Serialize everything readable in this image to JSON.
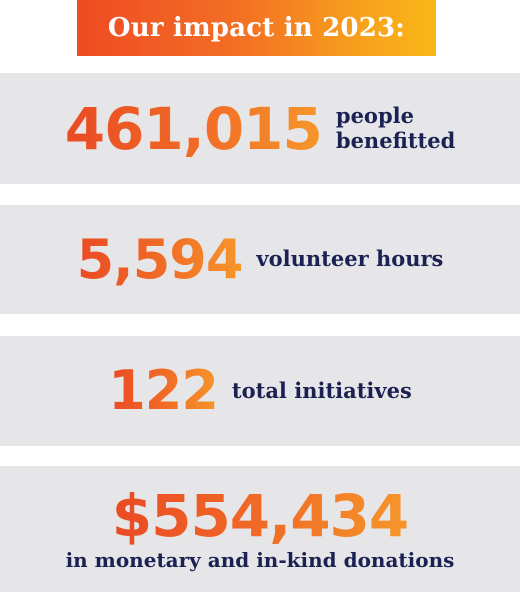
{
  "header": {
    "title": "Our impact in 2023:"
  },
  "stats": [
    {
      "value": "461,015",
      "label_line1": "people",
      "label_line2": "benefitted"
    },
    {
      "value": "5,594",
      "label": "volunteer hours"
    },
    {
      "value": "122",
      "label": "total initiatives"
    },
    {
      "value": "$554,434",
      "label": "in monetary and in-kind donations"
    }
  ],
  "colors": {
    "accent_start": "#ea4a24",
    "accent_end": "#f9b718",
    "panel_bg": "#e6e6e8",
    "text_navy": "#1c2154"
  }
}
